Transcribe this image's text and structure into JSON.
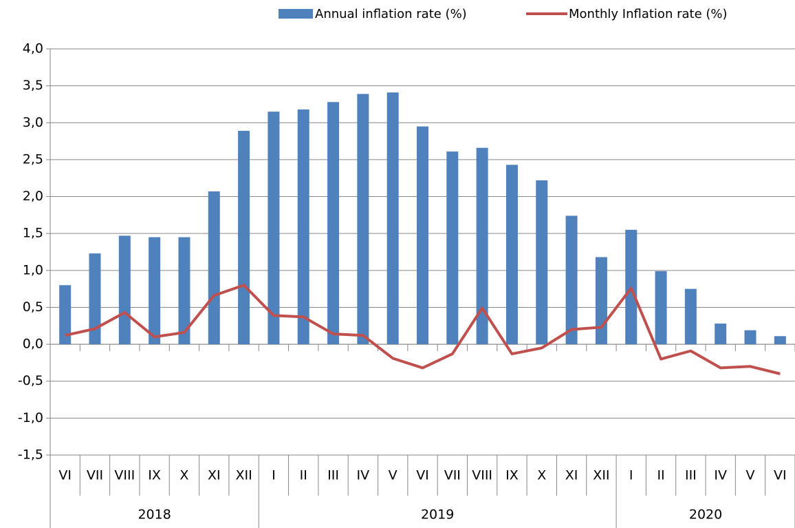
{
  "chart_data": {
    "type": "bar-line",
    "categories": [
      "VI",
      "VII",
      "VIII",
      "IX",
      "X",
      "XI",
      "XII",
      "I",
      "II",
      "III",
      "IV",
      "V",
      "VI",
      "VII",
      "VIII",
      "IX",
      "X",
      "XI",
      "XII",
      "I",
      "II",
      "III",
      "IV",
      "V",
      "VI"
    ],
    "category_groups": [
      "2018",
      "2018",
      "2018",
      "2018",
      "2018",
      "2018",
      "2018",
      "2019",
      "2019",
      "2019",
      "2019",
      "2019",
      "2019",
      "2019",
      "2019",
      "2019",
      "2019",
      "2019",
      "2019",
      "2020",
      "2020",
      "2020",
      "2020",
      "2020",
      "2020"
    ],
    "series": [
      {
        "name": "Annual inflation rate (%)",
        "type": "bar",
        "color": "#4f81bd",
        "values": [
          0.8,
          1.23,
          1.47,
          1.45,
          1.45,
          2.07,
          2.89,
          3.15,
          3.18,
          3.28,
          3.39,
          3.41,
          2.95,
          2.61,
          2.66,
          2.43,
          2.22,
          1.74,
          1.18,
          1.55,
          0.99,
          0.75,
          0.28,
          0.19,
          0.11
        ]
      },
      {
        "name": "Monthly Inflation rate (%)",
        "type": "line",
        "color": "#c0504d",
        "values": [
          0.12,
          0.21,
          0.43,
          0.1,
          0.16,
          0.66,
          0.8,
          0.39,
          0.37,
          0.14,
          0.12,
          -0.19,
          -0.32,
          -0.13,
          0.49,
          -0.13,
          -0.05,
          0.2,
          0.23,
          0.76,
          -0.2,
          -0.09,
          -0.32,
          -0.3,
          -0.4
        ]
      }
    ],
    "ylim": [
      -1.5,
      4
    ],
    "yticks": [
      {
        "value": -1.5,
        "label": "-1,5"
      },
      {
        "value": -1,
        "label": "-1,0"
      },
      {
        "value": -0.5,
        "label": "-0,5"
      },
      {
        "value": 0,
        "label": "0,0"
      },
      {
        "value": 0.5,
        "label": "0,5"
      },
      {
        "value": 1,
        "label": "1,0"
      },
      {
        "value": 1.5,
        "label": "1,5"
      },
      {
        "value": 2,
        "label": "2,0"
      },
      {
        "value": 2.5,
        "label": "2,5"
      },
      {
        "value": 3,
        "label": "3,0"
      },
      {
        "value": 3.5,
        "label": "3,5"
      },
      {
        "value": 4,
        "label": "4,0"
      }
    ],
    "grid": true
  }
}
